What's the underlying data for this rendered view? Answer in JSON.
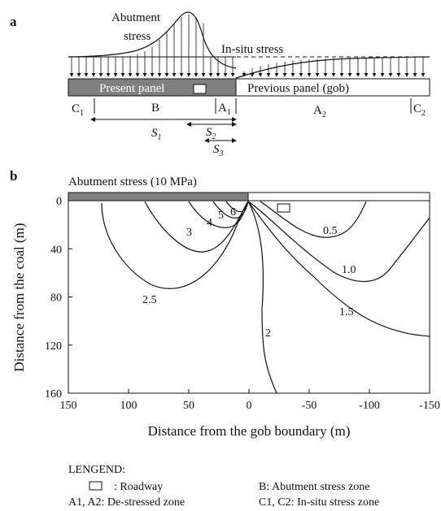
{
  "panel_a": {
    "label": "a",
    "abutment_stress_line1": "Abutment",
    "abutment_stress_line2": "stress",
    "in_situ_stress": "In-situ stress",
    "present_panel": "Present panel",
    "previous_panel": "Previous panel (gob)",
    "zones": {
      "c1": "C",
      "c1_sub": "1",
      "b": "B",
      "a1": "A",
      "a1_sub": "1",
      "a2": "A",
      "a2_sub": "2",
      "c2": "C",
      "c2_sub": "2"
    },
    "dims": {
      "s1": "S",
      "s1_sub": "1",
      "s2": "S",
      "s2_sub": "2",
      "s3": "S",
      "s3_sub": "3"
    }
  },
  "panel_b": {
    "label": "b",
    "header": "Abutment stress (10 MPa)",
    "xlabel": "Distance from the gob boundary (m)",
    "ylabel": "Distance from the coal (m)",
    "x_ticks": [
      "150",
      "100",
      "50",
      "0",
      "-50",
      "-100",
      "-150"
    ],
    "y_ticks": [
      "0",
      "40",
      "80",
      "120",
      "160"
    ],
    "contours": [
      {
        "label": "0.5"
      },
      {
        "label": "1.0"
      },
      {
        "label": "1.5"
      },
      {
        "label": "2"
      },
      {
        "label": "2.5"
      },
      {
        "label": "3"
      },
      {
        "label": "4"
      },
      {
        "label": "5"
      },
      {
        "label": "6"
      }
    ]
  },
  "chart_data": {
    "type": "contour",
    "title": "Abutment stress (10 MPa)",
    "xlabel": "Distance from the gob boundary (m)",
    "ylabel": "Distance from the coal (m)",
    "xlim": [
      150,
      -150
    ],
    "ylim": [
      0,
      160
    ],
    "x_ticks": [
      150,
      100,
      50,
      0,
      -50,
      -100,
      -150
    ],
    "y_ticks": [
      0,
      40,
      80,
      120,
      160
    ],
    "contour_levels": [
      0.5,
      1.0,
      1.5,
      2,
      2.5,
      3,
      4,
      5,
      6
    ]
  },
  "legend": {
    "title": "LENGEND:",
    "roadway": ": Roadway",
    "abutment_zone": "B: Abutment stress zone",
    "destressed_zone": "A1, A2: De-stressed zone",
    "insitu_zone": "C1, C2: In-situ stress zone"
  }
}
